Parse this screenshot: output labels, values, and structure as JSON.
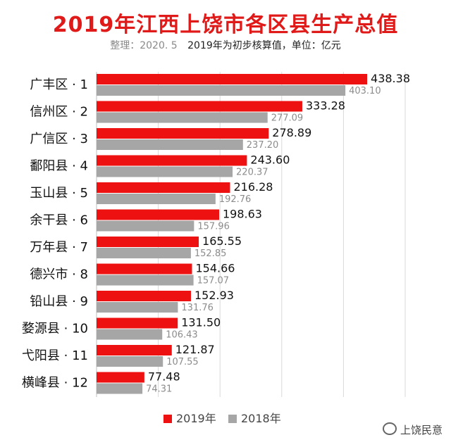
{
  "chart_data": {
    "type": "bar",
    "orientation": "horizontal",
    "title": "2019年江西上饶市各区县生产总值",
    "subtitle_note": "整理：2020. 5",
    "subtitle": "2019年为初步核算值，单位：亿元",
    "categories": [
      "广丰区 · 1",
      "信州区 · 2",
      "广信区 · 3",
      "鄱阳县 · 4",
      "玉山县 · 5",
      "余干县 · 6",
      "万年县 · 7",
      "德兴市 · 8",
      "铅山县 · 9",
      "婺源县 · 10",
      "弋阳县 · 11",
      "横峰县 · 12"
    ],
    "series": [
      {
        "name": "2019年",
        "color": "#ee1111",
        "values": [
          438.38,
          333.28,
          278.89,
          243.6,
          216.28,
          198.63,
          165.55,
          154.66,
          152.93,
          131.5,
          121.87,
          77.48
        ],
        "labels": [
          "438.38",
          "333.28",
          "278.89",
          "243.60",
          "216.28",
          "198.63",
          "165.55",
          "154.66",
          "152.93",
          "131.50",
          "121.87",
          "77.48"
        ]
      },
      {
        "name": "2018年",
        "color": "#a6a6a6",
        "values": [
          403.1,
          277.09,
          237.2,
          220.37,
          192.76,
          157.96,
          152.85,
          157.07,
          131.76,
          106.43,
          107.55,
          74.31
        ],
        "labels": [
          "403.10",
          "277.09",
          "237.20",
          "220.37",
          "192.76",
          "157.96",
          "152.85",
          "157.07",
          "131.76",
          "106.43",
          "107.55",
          "74.31"
        ]
      }
    ],
    "xlim": [
      0,
      500
    ],
    "grid": true,
    "legend_position": "bottom"
  },
  "watermark": "上饶民意"
}
